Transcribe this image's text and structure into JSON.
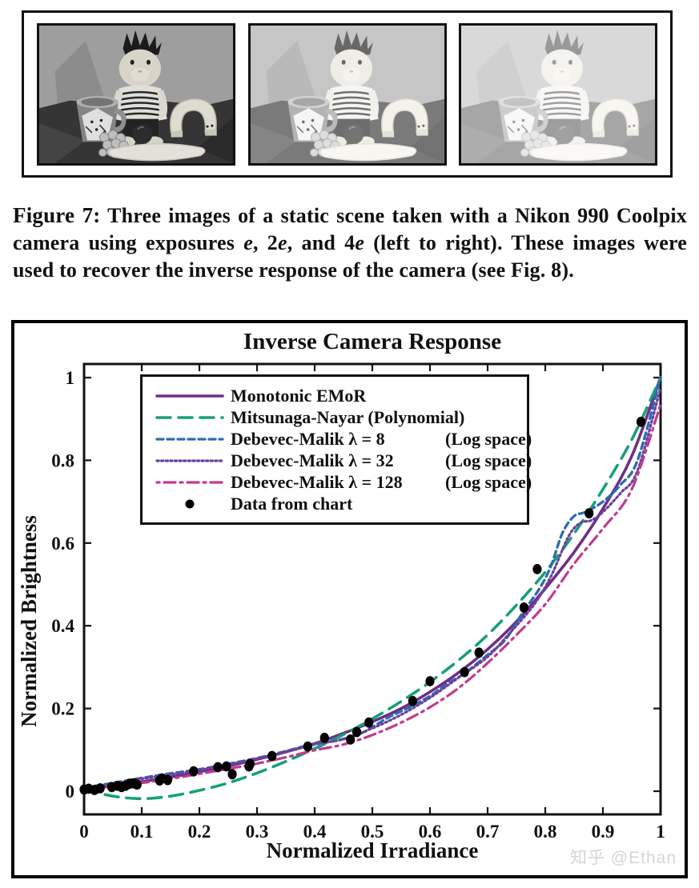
{
  "photos": {
    "count": 3
  },
  "caption": {
    "prefix": "Figure 7:",
    "segments": [
      {
        "text": "  Three images of a static scene taken with a Nikon 990 Coolpix camera using exposures ",
        "italic": false
      },
      {
        "text": "e",
        "italic": true
      },
      {
        "text": ", 2",
        "italic": false
      },
      {
        "text": "e",
        "italic": true
      },
      {
        "text": ", and 4",
        "italic": false
      },
      {
        "text": "e",
        "italic": true
      },
      {
        "text": " (left to right). These images were used to recover the inverse response of the camera (see Fig. 8).",
        "italic": false
      }
    ]
  },
  "watermark": {
    "text": "知乎 @Ethan",
    "color": "#d5d5d5"
  },
  "chart_data": {
    "type": "line",
    "title": "Inverse Camera Response",
    "xlabel": "Normalized Irradiance",
    "ylabel": "Normalized Brightness",
    "xlim": [
      0,
      1
    ],
    "ylim": [
      -0.056,
      1.04
    ],
    "grid": false,
    "legend_position": "upper-left",
    "x_ticks": [
      "0",
      "0.1",
      "0.2",
      "0.3",
      "0.4",
      "0.5",
      "0.6",
      "0.7",
      "0.8",
      "0.9",
      "1"
    ],
    "y_ticks": [
      "0",
      "0.2",
      "0.4",
      "0.6",
      "0.8",
      "1"
    ],
    "ink_color": "#111111",
    "legend": [
      {
        "name": "Monotonic EMoR",
        "note": ""
      },
      {
        "name": "Mitsunaga-Nayar (Polynomial)",
        "note": ""
      },
      {
        "name": "Debevec-Malik λ = 8",
        "note": "(Log space)"
      },
      {
        "name": "Debevec-Malik λ = 32",
        "note": "(Log space)"
      },
      {
        "name": "Debevec-Malik λ = 128",
        "note": "(Log space)"
      },
      {
        "name": "Data from chart",
        "note": ""
      }
    ],
    "series": [
      {
        "name": "Monotonic EMoR",
        "color": "#6e2f85",
        "dash": "",
        "width": 3.6,
        "x": [
          0,
          0.05,
          0.1,
          0.15,
          0.2,
          0.25,
          0.3,
          0.35,
          0.4,
          0.45,
          0.5,
          0.55,
          0.6,
          0.65,
          0.7,
          0.75,
          0.8,
          0.85,
          0.9,
          0.95,
          1.0
        ],
        "y": [
          0.005,
          0.013,
          0.023,
          0.034,
          0.047,
          0.061,
          0.077,
          0.095,
          0.115,
          0.14,
          0.168,
          0.2,
          0.24,
          0.287,
          0.343,
          0.41,
          0.49,
          0.578,
          0.683,
          0.81,
          1.0
        ]
      },
      {
        "name": "Mitsunaga-Nayar (Polynomial)",
        "color": "#18a077",
        "dash": "17 10",
        "width": 3.6,
        "x": [
          0,
          0.05,
          0.1,
          0.15,
          0.2,
          0.25,
          0.3,
          0.35,
          0.4,
          0.45,
          0.5,
          0.55,
          0.6,
          0.65,
          0.7,
          0.75,
          0.8,
          0.85,
          0.9,
          0.95,
          1.0
        ],
        "y": [
          0.005,
          -0.012,
          -0.018,
          -0.012,
          0.002,
          0.02,
          0.044,
          0.072,
          0.103,
          0.137,
          0.175,
          0.217,
          0.264,
          0.317,
          0.378,
          0.45,
          0.53,
          0.623,
          0.73,
          0.85,
          1.0
        ]
      },
      {
        "name": "Debevec-Malik λ = 8 (Log space)",
        "color": "#2b6cb0",
        "dash": "8 5",
        "width": 3.3,
        "x": [
          0,
          0.05,
          0.1,
          0.15,
          0.2,
          0.25,
          0.3,
          0.35,
          0.4,
          0.44,
          0.48,
          0.5,
          0.53,
          0.56,
          0.6,
          0.63,
          0.66,
          0.7,
          0.73,
          0.76,
          0.79,
          0.81,
          0.83,
          0.85,
          0.87,
          0.9,
          0.93,
          0.96,
          1.0
        ],
        "y": [
          0.008,
          0.02,
          0.032,
          0.043,
          0.053,
          0.066,
          0.08,
          0.097,
          0.115,
          0.123,
          0.14,
          0.155,
          0.18,
          0.2,
          0.23,
          0.26,
          0.285,
          0.33,
          0.365,
          0.43,
          0.49,
          0.545,
          0.625,
          0.665,
          0.675,
          0.7,
          0.74,
          0.8,
          1.0
        ]
      },
      {
        "name": "Debevec-Malik λ = 32 (Log space)",
        "color": "#6d3f9e",
        "dash": "2.2 3.4",
        "width": 3.2,
        "x": [
          0,
          0.05,
          0.1,
          0.15,
          0.2,
          0.25,
          0.3,
          0.35,
          0.4,
          0.45,
          0.5,
          0.55,
          0.6,
          0.65,
          0.7,
          0.74,
          0.78,
          0.81,
          0.84,
          0.86,
          0.88,
          0.9,
          0.93,
          0.96,
          1.0
        ],
        "y": [
          0.006,
          0.018,
          0.03,
          0.04,
          0.051,
          0.064,
          0.079,
          0.096,
          0.113,
          0.126,
          0.152,
          0.185,
          0.226,
          0.275,
          0.325,
          0.385,
          0.45,
          0.52,
          0.615,
          0.648,
          0.655,
          0.675,
          0.72,
          0.775,
          0.975
        ]
      },
      {
        "name": "Debevec-Malik λ = 128 (Log space)",
        "color": "#c13a8e",
        "dash": "3 6 14 6",
        "width": 3.2,
        "x": [
          0,
          0.05,
          0.1,
          0.15,
          0.2,
          0.25,
          0.3,
          0.35,
          0.4,
          0.45,
          0.5,
          0.55,
          0.6,
          0.65,
          0.7,
          0.75,
          0.8,
          0.85,
          0.9,
          0.95,
          1.0
        ],
        "y": [
          0.004,
          0.011,
          0.02,
          0.03,
          0.042,
          0.054,
          0.067,
          0.082,
          0.099,
          0.113,
          0.136,
          0.166,
          0.203,
          0.25,
          0.31,
          0.378,
          0.452,
          0.55,
          0.635,
          0.73,
          0.935
        ]
      }
    ],
    "points": {
      "name": "Data from chart",
      "color": "#000000",
      "x": [
        0.0,
        0.008,
        0.018,
        0.028,
        0.048,
        0.058,
        0.065,
        0.072,
        0.079,
        0.086,
        0.092,
        0.131,
        0.135,
        0.145,
        0.19,
        0.232,
        0.247,
        0.257,
        0.286,
        0.288,
        0.326,
        0.388,
        0.417,
        0.462,
        0.473,
        0.494,
        0.57,
        0.6,
        0.66,
        0.685,
        0.763,
        0.786,
        0.876,
        0.966
      ],
      "y": [
        0.004,
        0.006,
        0.003,
        0.007,
        0.01,
        0.013,
        0.01,
        0.013,
        0.018,
        0.019,
        0.016,
        0.026,
        0.031,
        0.027,
        0.048,
        0.058,
        0.06,
        0.041,
        0.06,
        0.066,
        0.085,
        0.108,
        0.129,
        0.125,
        0.143,
        0.166,
        0.218,
        0.266,
        0.288,
        0.335,
        0.444,
        0.537,
        0.672,
        0.893
      ]
    }
  }
}
